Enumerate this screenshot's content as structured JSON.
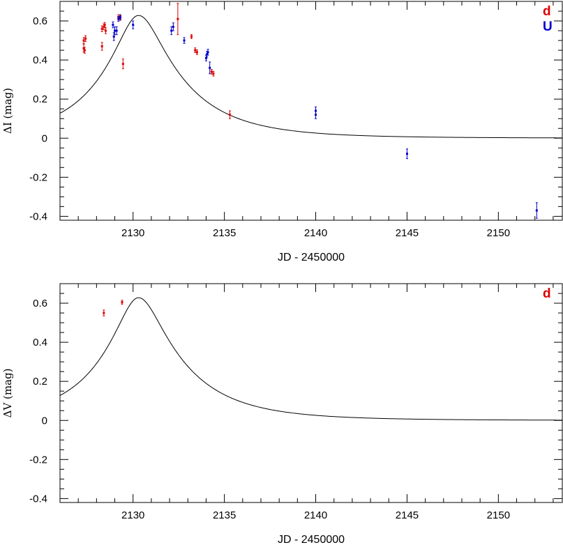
{
  "chart_data": [
    {
      "type": "scatter",
      "xlabel": "JD - 2450000",
      "ylabel": "ΔI (mag)",
      "xlim": [
        2126,
        2153.5
      ],
      "ylim": [
        -0.42,
        0.7
      ],
      "xticks": [
        2130,
        2135,
        2140,
        2145,
        2150
      ],
      "yticks": [
        -0.4,
        -0.2,
        0,
        0.2,
        0.4,
        0.6
      ],
      "ytick_labels": [
        "-0.4",
        "-0.2",
        "0",
        "0.2",
        "0.4",
        "0.6"
      ],
      "legend": [
        "d",
        "U"
      ],
      "legend_position": "top-right",
      "series": [
        {
          "name": "d",
          "color": "#dd0000",
          "points": [
            [
              2127.3,
              0.5,
              0.015
            ],
            [
              2127.4,
              0.51,
              0.015
            ],
            [
              2127.3,
              0.46,
              0.02
            ],
            [
              2127.35,
              0.45,
              0.015
            ],
            [
              2128.3,
              0.47,
              0.02
            ],
            [
              2128.3,
              0.56,
              0.015
            ],
            [
              2128.4,
              0.57,
              0.015
            ],
            [
              2128.45,
              0.58,
              0.012
            ],
            [
              2128.5,
              0.55,
              0.015
            ],
            [
              2129.2,
              0.62,
              0.012
            ],
            [
              2129.3,
              0.615,
              0.012
            ],
            [
              2129.45,
              0.38,
              0.025
            ],
            [
              2132.45,
              0.61,
              0.08
            ],
            [
              2133.2,
              0.52,
              0.01
            ],
            [
              2133.4,
              0.45,
              0.012
            ],
            [
              2133.5,
              0.44,
              0.012
            ],
            [
              2134.3,
              0.34,
              0.012
            ],
            [
              2134.4,
              0.33,
              0.012
            ],
            [
              2135.3,
              0.12,
              0.02
            ]
          ]
        },
        {
          "name": "U",
          "color": "#0000cc",
          "points": [
            [
              2128.9,
              0.58,
              0.015
            ],
            [
              2128.95,
              0.52,
              0.02
            ],
            [
              2129.0,
              0.55,
              0.02
            ],
            [
              2129.1,
              0.55,
              0.02
            ],
            [
              2129.2,
              0.61,
              0.012
            ],
            [
              2129.3,
              0.62,
              0.012
            ],
            [
              2130.0,
              0.58,
              0.02
            ],
            [
              2132.1,
              0.55,
              0.02
            ],
            [
              2132.2,
              0.57,
              0.02
            ],
            [
              2132.8,
              0.5,
              0.015
            ],
            [
              2134.0,
              0.41,
              0.015
            ],
            [
              2134.05,
              0.43,
              0.015
            ],
            [
              2134.1,
              0.44,
              0.015
            ],
            [
              2134.2,
              0.36,
              0.03
            ],
            [
              2140.0,
              0.12,
              0.02
            ],
            [
              2140.0,
              0.14,
              0.02
            ],
            [
              2145.0,
              -0.08,
              0.025
            ],
            [
              2152.1,
              -0.37,
              0.04
            ]
          ]
        }
      ],
      "model_curve": {
        "peak_x": 2130.3,
        "peak_y": 0.628,
        "baseline": 0.0,
        "description": "single-lens microlensing fit"
      }
    },
    {
      "type": "scatter",
      "xlabel": "JD - 2450000",
      "ylabel": "ΔV (mag)",
      "xlim": [
        2126,
        2153.5
      ],
      "ylim": [
        -0.42,
        0.7
      ],
      "xticks": [
        2130,
        2135,
        2140,
        2145,
        2150
      ],
      "yticks": [
        -0.4,
        -0.2,
        0,
        0.2,
        0.4,
        0.6
      ],
      "ytick_labels": [
        "-0.4",
        "-0.2",
        "0",
        "0.2",
        "0.4",
        "0.6"
      ],
      "legend": [
        "d"
      ],
      "legend_position": "top-right",
      "series": [
        {
          "name": "d",
          "color": "#dd0000",
          "points": [
            [
              2128.4,
              0.55,
              0.015
            ],
            [
              2129.4,
              0.605,
              0.01
            ]
          ]
        }
      ],
      "model_curve": {
        "peak_x": 2130.3,
        "peak_y": 0.628,
        "baseline": 0.0,
        "description": "single-lens microlensing fit"
      }
    }
  ]
}
